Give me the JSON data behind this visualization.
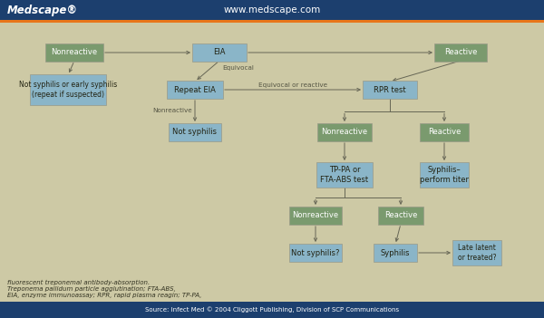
{
  "bg_color": "#cdc9a5",
  "header_bg": "#1c3f6e",
  "footer_bg": "#1c3f6e",
  "header_text_color": "#ffffff",
  "footer_text_color": "#ffffff",
  "header_left": "Medscape®",
  "header_center": "www.medscape.com",
  "footer_text": "Source: Infect Med © 2004 Cliggott Publishing, Division of SCP Communications",
  "footnote_line1": "EIA, enzyme immunoassay; RPR, rapid plasma reagin; TP-PA,",
  "footnote_line2": "Treponema pallidum particle agglutination; FTA-ABS,",
  "footnote_line3": "fluorescent treponemal antibody-absorption.",
  "orange_stripe": "#e8761a",
  "blue_box": "#8ab5c8",
  "green_box": "#7a9a6e",
  "arrow_color": "#666655",
  "label_color": "#555544",
  "text_dark": "#222211"
}
